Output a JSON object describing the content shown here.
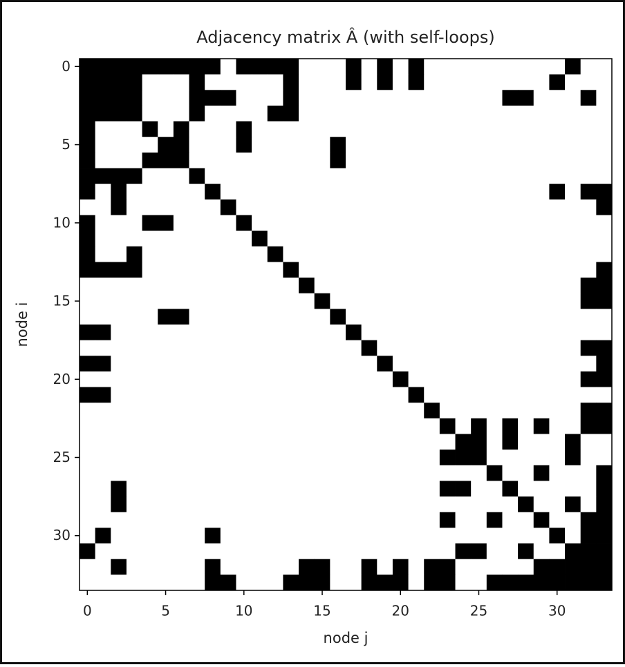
{
  "chart_data": {
    "type": "heatmap",
    "title": "Adjacency matrix Â (with self-loops)",
    "x_label": "node j",
    "y_label": "node i",
    "xlim": [
      -0.5,
      33.5
    ],
    "ylim": [
      33.5,
      -0.5
    ],
    "xticks": [
      0,
      5,
      10,
      15,
      20,
      25,
      30
    ],
    "yticks": [
      0,
      5,
      10,
      15,
      20,
      25,
      30
    ],
    "cmap_colors": [
      "#ffffff",
      "#000000"
    ],
    "values": [
      [
        1,
        1,
        1,
        1,
        1,
        1,
        1,
        1,
        1,
        0,
        1,
        1,
        1,
        1,
        0,
        0,
        0,
        1,
        0,
        1,
        0,
        1,
        0,
        0,
        0,
        0,
        0,
        0,
        0,
        0,
        0,
        1,
        0,
        0
      ],
      [
        1,
        1,
        1,
        1,
        0,
        0,
        0,
        1,
        0,
        0,
        0,
        0,
        0,
        1,
        0,
        0,
        0,
        1,
        0,
        1,
        0,
        1,
        0,
        0,
        0,
        0,
        0,
        0,
        0,
        0,
        1,
        0,
        0,
        0
      ],
      [
        1,
        1,
        1,
        1,
        0,
        0,
        0,
        1,
        1,
        1,
        0,
        0,
        0,
        1,
        0,
        0,
        0,
        0,
        0,
        0,
        0,
        0,
        0,
        0,
        0,
        0,
        0,
        1,
        1,
        0,
        0,
        0,
        1,
        0
      ],
      [
        1,
        1,
        1,
        1,
        0,
        0,
        0,
        1,
        0,
        0,
        0,
        0,
        1,
        1,
        0,
        0,
        0,
        0,
        0,
        0,
        0,
        0,
        0,
        0,
        0,
        0,
        0,
        0,
        0,
        0,
        0,
        0,
        0,
        0
      ],
      [
        1,
        0,
        0,
        0,
        1,
        0,
        1,
        0,
        0,
        0,
        1,
        0,
        0,
        0,
        0,
        0,
        0,
        0,
        0,
        0,
        0,
        0,
        0,
        0,
        0,
        0,
        0,
        0,
        0,
        0,
        0,
        0,
        0,
        0
      ],
      [
        1,
        0,
        0,
        0,
        0,
        1,
        1,
        0,
        0,
        0,
        1,
        0,
        0,
        0,
        0,
        0,
        1,
        0,
        0,
        0,
        0,
        0,
        0,
        0,
        0,
        0,
        0,
        0,
        0,
        0,
        0,
        0,
        0,
        0
      ],
      [
        1,
        0,
        0,
        0,
        1,
        1,
        1,
        0,
        0,
        0,
        0,
        0,
        0,
        0,
        0,
        0,
        1,
        0,
        0,
        0,
        0,
        0,
        0,
        0,
        0,
        0,
        0,
        0,
        0,
        0,
        0,
        0,
        0,
        0
      ],
      [
        1,
        1,
        1,
        1,
        0,
        0,
        0,
        1,
        0,
        0,
        0,
        0,
        0,
        0,
        0,
        0,
        0,
        0,
        0,
        0,
        0,
        0,
        0,
        0,
        0,
        0,
        0,
        0,
        0,
        0,
        0,
        0,
        0,
        0
      ],
      [
        1,
        0,
        1,
        0,
        0,
        0,
        0,
        0,
        1,
        0,
        0,
        0,
        0,
        0,
        0,
        0,
        0,
        0,
        0,
        0,
        0,
        0,
        0,
        0,
        0,
        0,
        0,
        0,
        0,
        0,
        1,
        0,
        1,
        1
      ],
      [
        0,
        0,
        1,
        0,
        0,
        0,
        0,
        0,
        0,
        1,
        0,
        0,
        0,
        0,
        0,
        0,
        0,
        0,
        0,
        0,
        0,
        0,
        0,
        0,
        0,
        0,
        0,
        0,
        0,
        0,
        0,
        0,
        0,
        1
      ],
      [
        1,
        0,
        0,
        0,
        1,
        1,
        0,
        0,
        0,
        0,
        1,
        0,
        0,
        0,
        0,
        0,
        0,
        0,
        0,
        0,
        0,
        0,
        0,
        0,
        0,
        0,
        0,
        0,
        0,
        0,
        0,
        0,
        0,
        0
      ],
      [
        1,
        0,
        0,
        0,
        0,
        0,
        0,
        0,
        0,
        0,
        0,
        1,
        0,
        0,
        0,
        0,
        0,
        0,
        0,
        0,
        0,
        0,
        0,
        0,
        0,
        0,
        0,
        0,
        0,
        0,
        0,
        0,
        0,
        0
      ],
      [
        1,
        0,
        0,
        1,
        0,
        0,
        0,
        0,
        0,
        0,
        0,
        0,
        1,
        0,
        0,
        0,
        0,
        0,
        0,
        0,
        0,
        0,
        0,
        0,
        0,
        0,
        0,
        0,
        0,
        0,
        0,
        0,
        0,
        0
      ],
      [
        1,
        1,
        1,
        1,
        0,
        0,
        0,
        0,
        0,
        0,
        0,
        0,
        0,
        1,
        0,
        0,
        0,
        0,
        0,
        0,
        0,
        0,
        0,
        0,
        0,
        0,
        0,
        0,
        0,
        0,
        0,
        0,
        0,
        1
      ],
      [
        0,
        0,
        0,
        0,
        0,
        0,
        0,
        0,
        0,
        0,
        0,
        0,
        0,
        0,
        1,
        0,
        0,
        0,
        0,
        0,
        0,
        0,
        0,
        0,
        0,
        0,
        0,
        0,
        0,
        0,
        0,
        0,
        1,
        1
      ],
      [
        0,
        0,
        0,
        0,
        0,
        0,
        0,
        0,
        0,
        0,
        0,
        0,
        0,
        0,
        0,
        1,
        0,
        0,
        0,
        0,
        0,
        0,
        0,
        0,
        0,
        0,
        0,
        0,
        0,
        0,
        0,
        0,
        1,
        1
      ],
      [
        0,
        0,
        0,
        0,
        0,
        1,
        1,
        0,
        0,
        0,
        0,
        0,
        0,
        0,
        0,
        0,
        1,
        0,
        0,
        0,
        0,
        0,
        0,
        0,
        0,
        0,
        0,
        0,
        0,
        0,
        0,
        0,
        0,
        0
      ],
      [
        1,
        1,
        0,
        0,
        0,
        0,
        0,
        0,
        0,
        0,
        0,
        0,
        0,
        0,
        0,
        0,
        0,
        1,
        0,
        0,
        0,
        0,
        0,
        0,
        0,
        0,
        0,
        0,
        0,
        0,
        0,
        0,
        0,
        0
      ],
      [
        0,
        0,
        0,
        0,
        0,
        0,
        0,
        0,
        0,
        0,
        0,
        0,
        0,
        0,
        0,
        0,
        0,
        0,
        1,
        0,
        0,
        0,
        0,
        0,
        0,
        0,
        0,
        0,
        0,
        0,
        0,
        0,
        1,
        1
      ],
      [
        1,
        1,
        0,
        0,
        0,
        0,
        0,
        0,
        0,
        0,
        0,
        0,
        0,
        0,
        0,
        0,
        0,
        0,
        0,
        1,
        0,
        0,
        0,
        0,
        0,
        0,
        0,
        0,
        0,
        0,
        0,
        0,
        0,
        1
      ],
      [
        0,
        0,
        0,
        0,
        0,
        0,
        0,
        0,
        0,
        0,
        0,
        0,
        0,
        0,
        0,
        0,
        0,
        0,
        0,
        0,
        1,
        0,
        0,
        0,
        0,
        0,
        0,
        0,
        0,
        0,
        0,
        0,
        1,
        1
      ],
      [
        1,
        1,
        0,
        0,
        0,
        0,
        0,
        0,
        0,
        0,
        0,
        0,
        0,
        0,
        0,
        0,
        0,
        0,
        0,
        0,
        0,
        1,
        0,
        0,
        0,
        0,
        0,
        0,
        0,
        0,
        0,
        0,
        0,
        0
      ],
      [
        0,
        0,
        0,
        0,
        0,
        0,
        0,
        0,
        0,
        0,
        0,
        0,
        0,
        0,
        0,
        0,
        0,
        0,
        0,
        0,
        0,
        0,
        1,
        0,
        0,
        0,
        0,
        0,
        0,
        0,
        0,
        0,
        1,
        1
      ],
      [
        0,
        0,
        0,
        0,
        0,
        0,
        0,
        0,
        0,
        0,
        0,
        0,
        0,
        0,
        0,
        0,
        0,
        0,
        0,
        0,
        0,
        0,
        0,
        1,
        0,
        1,
        0,
        1,
        0,
        1,
        0,
        0,
        1,
        1
      ],
      [
        0,
        0,
        0,
        0,
        0,
        0,
        0,
        0,
        0,
        0,
        0,
        0,
        0,
        0,
        0,
        0,
        0,
        0,
        0,
        0,
        0,
        0,
        0,
        0,
        1,
        1,
        0,
        1,
        0,
        0,
        0,
        1,
        0,
        0
      ],
      [
        0,
        0,
        0,
        0,
        0,
        0,
        0,
        0,
        0,
        0,
        0,
        0,
        0,
        0,
        0,
        0,
        0,
        0,
        0,
        0,
        0,
        0,
        0,
        1,
        1,
        1,
        0,
        0,
        0,
        0,
        0,
        1,
        0,
        0
      ],
      [
        0,
        0,
        0,
        0,
        0,
        0,
        0,
        0,
        0,
        0,
        0,
        0,
        0,
        0,
        0,
        0,
        0,
        0,
        0,
        0,
        0,
        0,
        0,
        0,
        0,
        0,
        1,
        0,
        0,
        1,
        0,
        0,
        0,
        1
      ],
      [
        0,
        0,
        1,
        0,
        0,
        0,
        0,
        0,
        0,
        0,
        0,
        0,
        0,
        0,
        0,
        0,
        0,
        0,
        0,
        0,
        0,
        0,
        0,
        1,
        1,
        0,
        0,
        1,
        0,
        0,
        0,
        0,
        0,
        1
      ],
      [
        0,
        0,
        1,
        0,
        0,
        0,
        0,
        0,
        0,
        0,
        0,
        0,
        0,
        0,
        0,
        0,
        0,
        0,
        0,
        0,
        0,
        0,
        0,
        0,
        0,
        0,
        0,
        0,
        1,
        0,
        0,
        1,
        0,
        1
      ],
      [
        0,
        0,
        0,
        0,
        0,
        0,
        0,
        0,
        0,
        0,
        0,
        0,
        0,
        0,
        0,
        0,
        0,
        0,
        0,
        0,
        0,
        0,
        0,
        1,
        0,
        0,
        1,
        0,
        0,
        1,
        0,
        0,
        1,
        1
      ],
      [
        0,
        1,
        0,
        0,
        0,
        0,
        0,
        0,
        1,
        0,
        0,
        0,
        0,
        0,
        0,
        0,
        0,
        0,
        0,
        0,
        0,
        0,
        0,
        0,
        0,
        0,
        0,
        0,
        0,
        0,
        1,
        0,
        1,
        1
      ],
      [
        1,
        0,
        0,
        0,
        0,
        0,
        0,
        0,
        0,
        0,
        0,
        0,
        0,
        0,
        0,
        0,
        0,
        0,
        0,
        0,
        0,
        0,
        0,
        0,
        1,
        1,
        0,
        0,
        1,
        0,
        0,
        1,
        1,
        1
      ],
      [
        0,
        0,
        1,
        0,
        0,
        0,
        0,
        0,
        1,
        0,
        0,
        0,
        0,
        0,
        1,
        1,
        0,
        0,
        1,
        0,
        1,
        0,
        1,
        1,
        0,
        0,
        0,
        0,
        0,
        1,
        1,
        1,
        1,
        1
      ],
      [
        0,
        0,
        0,
        0,
        0,
        0,
        0,
        0,
        1,
        1,
        0,
        0,
        0,
        1,
        1,
        1,
        0,
        0,
        1,
        1,
        1,
        0,
        1,
        1,
        0,
        0,
        1,
        1,
        1,
        1,
        1,
        1,
        1,
        1
      ]
    ]
  }
}
